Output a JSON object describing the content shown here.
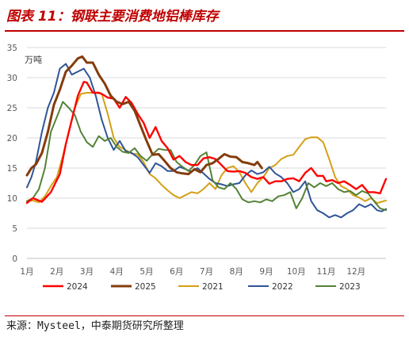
{
  "figure": {
    "title": "图表 11：钢联主要消费地铝棒库存",
    "source": "来源：Mysteel，中泰期货研究所整理"
  },
  "chart_data": {
    "type": "line",
    "unit_label": "万吨",
    "ylim": [
      0,
      35
    ],
    "yticks": [
      "0",
      "5",
      "10",
      "15",
      "20",
      "25",
      "30",
      "35"
    ],
    "xlim": [
      1,
      13
    ],
    "xticks": [
      "1月",
      "2月",
      "3月",
      "4月",
      "5月",
      "6月",
      "7月",
      "8月",
      "9月",
      "10月",
      "11月",
      "12月"
    ],
    "grid": true,
    "legend_position": "bottom",
    "series": [
      {
        "name": "2024",
        "color": "#ff0000",
        "width": 2.4,
        "points": [
          [
            1.0,
            9.2
          ],
          [
            1.2,
            10
          ],
          [
            1.5,
            9.4
          ],
          [
            1.8,
            11
          ],
          [
            2.1,
            14
          ],
          [
            2.3,
            19
          ],
          [
            2.5,
            23
          ],
          [
            2.7,
            27
          ],
          [
            2.9,
            29.3
          ],
          [
            3.0,
            29.2
          ],
          [
            3.2,
            27.5
          ],
          [
            3.4,
            27.5
          ],
          [
            3.5,
            27.3
          ],
          [
            3.7,
            26.7
          ],
          [
            3.9,
            26.5
          ],
          [
            4.1,
            25
          ],
          [
            4.3,
            26.8
          ],
          [
            4.5,
            25.8
          ],
          [
            4.7,
            24
          ],
          [
            4.9,
            22.5
          ],
          [
            5.1,
            20
          ],
          [
            5.3,
            21.8
          ],
          [
            5.5,
            19.5
          ],
          [
            5.7,
            18.3
          ],
          [
            5.9,
            16.4
          ],
          [
            6.1,
            17
          ],
          [
            6.3,
            16
          ],
          [
            6.5,
            15.5
          ],
          [
            6.7,
            15.5
          ],
          [
            6.9,
            16.6
          ],
          [
            7.1,
            16.8
          ],
          [
            7.3,
            16.5
          ],
          [
            7.5,
            15.5
          ],
          [
            7.7,
            14.5
          ],
          [
            7.9,
            14.4
          ],
          [
            8.1,
            14.5
          ],
          [
            8.3,
            14.2
          ],
          [
            8.5,
            13.5
          ],
          [
            8.7,
            13.2
          ],
          [
            8.9,
            13.5
          ],
          [
            9.1,
            12.4
          ],
          [
            9.3,
            12.8
          ],
          [
            9.5,
            12.8
          ],
          [
            9.7,
            13.2
          ],
          [
            9.9,
            13.3
          ],
          [
            10.1,
            12.8
          ],
          [
            10.3,
            14.2
          ],
          [
            10.5,
            15
          ],
          [
            10.7,
            13.7
          ],
          [
            10.9,
            13.7
          ],
          [
            11.0,
            12.8
          ],
          [
            11.2,
            13.0
          ],
          [
            11.4,
            12.5
          ],
          [
            11.6,
            12.8
          ],
          [
            11.8,
            12.2
          ],
          [
            12.0,
            11.5
          ],
          [
            12.2,
            12.2
          ],
          [
            12.4,
            11
          ],
          [
            12.6,
            11
          ],
          [
            12.8,
            10.8
          ],
          [
            13.0,
            13.2
          ]
        ]
      },
      {
        "name": "2025",
        "color": "#843c0c",
        "width": 3.0,
        "points": [
          [
            1.0,
            13.8
          ],
          [
            1.15,
            15
          ],
          [
            1.3,
            15.6
          ],
          [
            1.5,
            17.5
          ],
          [
            1.7,
            21
          ],
          [
            1.9,
            25.5
          ],
          [
            2.1,
            28
          ],
          [
            2.3,
            31
          ],
          [
            2.5,
            32
          ],
          [
            2.7,
            33.2
          ],
          [
            2.85,
            33.5
          ],
          [
            3.0,
            32.5
          ],
          [
            3.2,
            32.5
          ],
          [
            3.4,
            30.5
          ],
          [
            3.6,
            29
          ],
          [
            3.8,
            27
          ],
          [
            4.0,
            26
          ],
          [
            4.2,
            25.6
          ],
          [
            4.4,
            26
          ],
          [
            4.6,
            24.5
          ],
          [
            4.8,
            22
          ],
          [
            5.0,
            19.5
          ],
          [
            5.2,
            17.2
          ],
          [
            5.4,
            17.3
          ],
          [
            5.6,
            16.2
          ],
          [
            5.8,
            15
          ],
          [
            6.0,
            14.3
          ],
          [
            6.2,
            14.1
          ],
          [
            6.4,
            14
          ],
          [
            6.6,
            14.8
          ],
          [
            6.8,
            14.3
          ],
          [
            7.0,
            15.5
          ],
          [
            7.2,
            15.8
          ],
          [
            7.4,
            16.5
          ],
          [
            7.6,
            17.3
          ],
          [
            7.8,
            16.9
          ],
          [
            8.0,
            16.8
          ],
          [
            8.2,
            16
          ],
          [
            8.4,
            15.8
          ],
          [
            8.6,
            15.5
          ],
          [
            8.7,
            16
          ],
          [
            8.85,
            15
          ]
        ]
      },
      {
        "name": "2021",
        "color": "#d4a017",
        "width": 2.0,
        "points": [
          [
            1.0,
            9.5
          ],
          [
            1.2,
            9.6
          ],
          [
            1.4,
            9.3
          ],
          [
            1.6,
            10.3
          ],
          [
            1.8,
            12
          ],
          [
            2.0,
            13.5
          ],
          [
            2.2,
            17
          ],
          [
            2.4,
            21
          ],
          [
            2.6,
            25
          ],
          [
            2.8,
            27.3
          ],
          [
            3.0,
            27.5
          ],
          [
            3.3,
            27.5
          ],
          [
            3.5,
            27.3
          ],
          [
            3.7,
            24
          ],
          [
            3.9,
            20
          ],
          [
            4.1,
            18.5
          ],
          [
            4.3,
            18
          ],
          [
            4.5,
            17.4
          ],
          [
            4.7,
            17.3
          ],
          [
            4.9,
            16
          ],
          [
            5.1,
            14
          ],
          [
            5.3,
            13.3
          ],
          [
            5.5,
            12.2
          ],
          [
            5.7,
            11.3
          ],
          [
            5.9,
            10.5
          ],
          [
            6.1,
            10
          ],
          [
            6.3,
            10.5
          ],
          [
            6.5,
            11
          ],
          [
            6.7,
            10.8
          ],
          [
            6.9,
            11.5
          ],
          [
            7.1,
            12.5
          ],
          [
            7.3,
            11.5
          ],
          [
            7.5,
            13.8
          ],
          [
            7.7,
            15
          ],
          [
            7.9,
            15.3
          ],
          [
            8.1,
            14.3
          ],
          [
            8.3,
            12.5
          ],
          [
            8.5,
            11
          ],
          [
            8.7,
            12.5
          ],
          [
            8.9,
            13.5
          ],
          [
            9.1,
            15
          ],
          [
            9.3,
            15.5
          ],
          [
            9.5,
            16.5
          ],
          [
            9.7,
            17
          ],
          [
            9.9,
            17.2
          ],
          [
            10.1,
            18.5
          ],
          [
            10.3,
            19.8
          ],
          [
            10.5,
            20.1
          ],
          [
            10.7,
            20.1
          ],
          [
            10.9,
            19.3
          ],
          [
            11.1,
            16.5
          ],
          [
            11.3,
            13.5
          ],
          [
            11.5,
            12
          ],
          [
            11.7,
            11.5
          ],
          [
            11.9,
            10.5
          ],
          [
            12.1,
            10.1
          ],
          [
            12.3,
            9.5
          ],
          [
            12.5,
            10
          ],
          [
            12.7,
            9.2
          ],
          [
            12.85,
            9.4
          ],
          [
            13.0,
            9.6
          ]
        ]
      },
      {
        "name": "2022",
        "color": "#2f5597",
        "width": 2.0,
        "points": [
          [
            1.0,
            11.8
          ],
          [
            1.15,
            13.5
          ],
          [
            1.3,
            16
          ],
          [
            1.5,
            21
          ],
          [
            1.7,
            25
          ],
          [
            1.9,
            27.5
          ],
          [
            2.1,
            31.5
          ],
          [
            2.3,
            32.3
          ],
          [
            2.5,
            30.5
          ],
          [
            2.7,
            31
          ],
          [
            2.9,
            31.5
          ],
          [
            3.1,
            30
          ],
          [
            3.3,
            27
          ],
          [
            3.5,
            23
          ],
          [
            3.7,
            20
          ],
          [
            3.9,
            18
          ],
          [
            4.1,
            19.5
          ],
          [
            4.3,
            17.8
          ],
          [
            4.5,
            17.5
          ],
          [
            4.7,
            16.8
          ],
          [
            4.9,
            15.5
          ],
          [
            5.1,
            14.2
          ],
          [
            5.3,
            15.8
          ],
          [
            5.5,
            15.3
          ],
          [
            5.7,
            14.5
          ],
          [
            5.9,
            14.5
          ],
          [
            6.1,
            15.2
          ],
          [
            6.3,
            14.8
          ],
          [
            6.5,
            14.4
          ],
          [
            6.7,
            15
          ],
          [
            6.9,
            14.1
          ],
          [
            7.1,
            13.2
          ],
          [
            7.3,
            12.5
          ],
          [
            7.5,
            12.3
          ],
          [
            7.7,
            12
          ],
          [
            7.9,
            12.3
          ],
          [
            8.1,
            12.5
          ],
          [
            8.3,
            13.8
          ],
          [
            8.5,
            14.6
          ],
          [
            8.7,
            14
          ],
          [
            8.9,
            14.3
          ],
          [
            9.1,
            15.2
          ],
          [
            9.3,
            14.1
          ],
          [
            9.5,
            13.5
          ],
          [
            9.7,
            12.5
          ],
          [
            9.9,
            11
          ],
          [
            10.1,
            11.5
          ],
          [
            10.3,
            12.8
          ],
          [
            10.5,
            9.5
          ],
          [
            10.7,
            8
          ],
          [
            10.9,
            7.5
          ],
          [
            11.1,
            6.8
          ],
          [
            11.3,
            7.2
          ],
          [
            11.5,
            6.8
          ],
          [
            11.7,
            7.5
          ],
          [
            11.9,
            8
          ],
          [
            12.1,
            9
          ],
          [
            12.3,
            8.5
          ],
          [
            12.5,
            9
          ],
          [
            12.7,
            8
          ],
          [
            12.85,
            7.8
          ],
          [
            13.0,
            8.2
          ]
        ]
      },
      {
        "name": "2023",
        "color": "#548235",
        "width": 2.0,
        "points": [
          [
            1.0,
            9.5
          ],
          [
            1.2,
            10
          ],
          [
            1.4,
            11.5
          ],
          [
            1.6,
            15
          ],
          [
            1.8,
            21
          ],
          [
            2.0,
            23.5
          ],
          [
            2.2,
            26
          ],
          [
            2.4,
            25
          ],
          [
            2.6,
            23.8
          ],
          [
            2.8,
            21
          ],
          [
            3.0,
            19.3
          ],
          [
            3.2,
            18.5
          ],
          [
            3.4,
            20.3
          ],
          [
            3.6,
            19.5
          ],
          [
            3.8,
            20
          ],
          [
            4.0,
            18.5
          ],
          [
            4.2,
            17.7
          ],
          [
            4.4,
            17.5
          ],
          [
            4.6,
            18.3
          ],
          [
            4.8,
            17
          ],
          [
            5.0,
            16.2
          ],
          [
            5.2,
            17.3
          ],
          [
            5.4,
            18.2
          ],
          [
            5.6,
            18
          ],
          [
            5.8,
            18
          ],
          [
            6.0,
            16
          ],
          [
            6.2,
            15.2
          ],
          [
            6.4,
            14.5
          ],
          [
            6.6,
            15.5
          ],
          [
            6.8,
            17
          ],
          [
            7.0,
            17.6
          ],
          [
            7.2,
            13
          ],
          [
            7.4,
            11.8
          ],
          [
            7.6,
            11.5
          ],
          [
            7.8,
            12.5
          ],
          [
            8.0,
            11.5
          ],
          [
            8.2,
            9.8
          ],
          [
            8.4,
            9.3
          ],
          [
            8.6,
            9.5
          ],
          [
            8.8,
            9.3
          ],
          [
            9.0,
            9.8
          ],
          [
            9.2,
            9.5
          ],
          [
            9.4,
            10.3
          ],
          [
            9.6,
            10.5
          ],
          [
            9.8,
            11
          ],
          [
            10.0,
            8.3
          ],
          [
            10.2,
            10
          ],
          [
            10.4,
            12.5
          ],
          [
            10.6,
            11.8
          ],
          [
            10.8,
            12.5
          ],
          [
            11.0,
            12
          ],
          [
            11.2,
            12.5
          ],
          [
            11.4,
            11.5
          ],
          [
            11.6,
            11
          ],
          [
            11.8,
            11.2
          ],
          [
            12.0,
            10.5
          ],
          [
            12.2,
            11.2
          ],
          [
            12.4,
            10.8
          ],
          [
            12.6,
            9.5
          ],
          [
            12.8,
            8.3
          ],
          [
            13.0,
            8.0
          ]
        ]
      }
    ]
  }
}
